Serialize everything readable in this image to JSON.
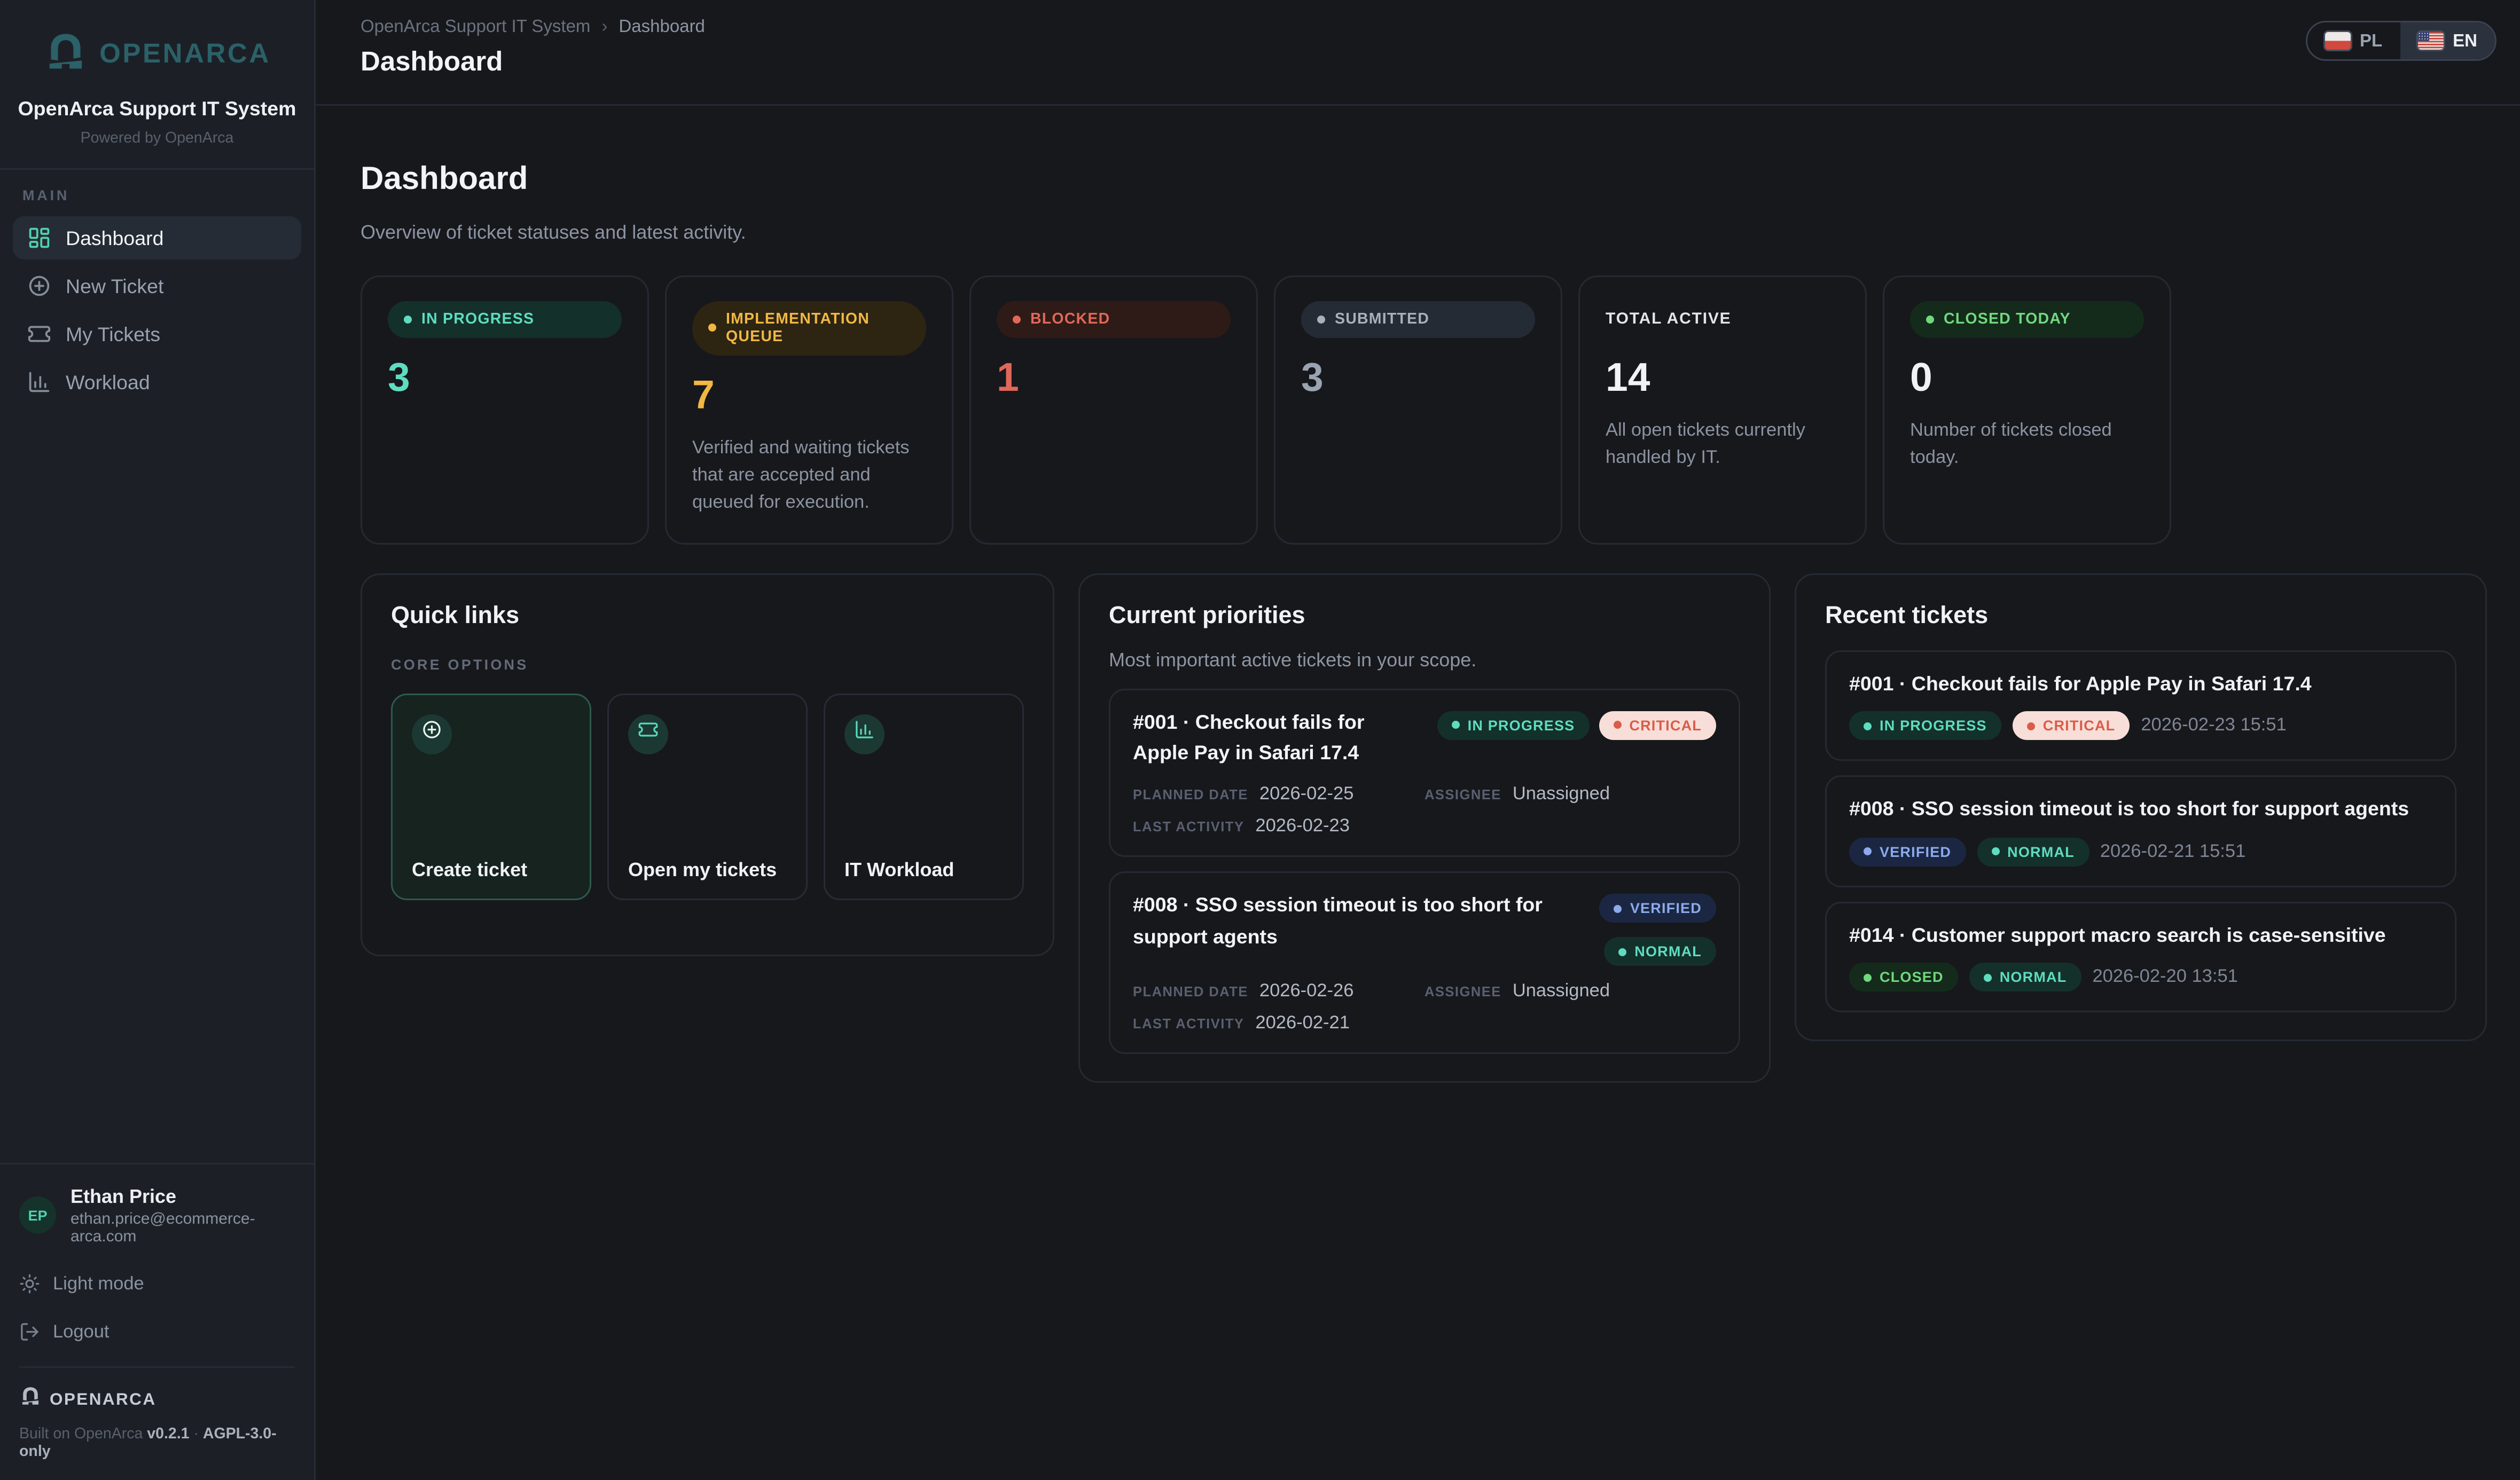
{
  "sidebar": {
    "brand": {
      "name": "OPENARCA",
      "title": "OpenArca Support IT System",
      "powered": "Powered by OpenArca"
    },
    "section_label": "MAIN",
    "items": [
      {
        "label": "Dashboard",
        "icon": "dashboard",
        "active": true
      },
      {
        "label": "New Ticket",
        "icon": "plus-circle",
        "active": false
      },
      {
        "label": "My Tickets",
        "icon": "ticket",
        "active": false
      },
      {
        "label": "Workload",
        "icon": "bar-chart",
        "active": false
      }
    ],
    "user": {
      "initials": "EP",
      "name": "Ethan Price",
      "email": "ethan.price@ecommerce-arca.com"
    },
    "actions": [
      {
        "label": "Light mode",
        "icon": "sun"
      },
      {
        "label": "Logout",
        "icon": "logout"
      }
    ],
    "footer": {
      "brand": "OPENARCA",
      "built": "Built on OpenArca",
      "version": "v0.2.1",
      "sep": "·",
      "license": "AGPL-3.0-only"
    }
  },
  "header": {
    "breadcrumb": {
      "root": "OpenArca Support IT System",
      "separator": "›",
      "current": "Dashboard"
    },
    "title": "Dashboard",
    "lang": [
      {
        "code": "PL",
        "flag": "poland",
        "active": false
      },
      {
        "code": "EN",
        "flag": "usa",
        "active": true
      }
    ]
  },
  "page": {
    "title": "Dashboard",
    "subtitle": "Overview of ticket statuses and latest activity."
  },
  "stats": [
    {
      "label": "IN PROGRESS",
      "badge_style": "teal",
      "value": "3",
      "value_style": "teal",
      "desc": ""
    },
    {
      "label": "IMPLEMENTATION QUEUE",
      "badge_style": "amber",
      "value": "7",
      "value_style": "amber",
      "desc": "Verified and waiting tickets that are accepted and queued for execution."
    },
    {
      "label": "BLOCKED",
      "badge_style": "red",
      "value": "1",
      "value_style": "red",
      "desc": ""
    },
    {
      "label": "SUBMITTED",
      "badge_style": "gray",
      "value": "3",
      "value_style": "gray",
      "desc": ""
    },
    {
      "label": "TOTAL ACTIVE",
      "badge_style": "none",
      "value": "14",
      "value_style": "white",
      "desc": "All open tickets currently handled by IT."
    },
    {
      "label": "CLOSED TODAY",
      "badge_style": "green",
      "value": "0",
      "value_style": "white",
      "desc": "Number of tickets closed today."
    }
  ],
  "quick_links": {
    "title": "Quick links",
    "section_label": "CORE OPTIONS",
    "tiles": [
      {
        "label": "Create ticket",
        "icon": "plus-circle",
        "highlight": true
      },
      {
        "label": "Open my tickets",
        "icon": "ticket",
        "highlight": false
      },
      {
        "label": "IT Workload",
        "icon": "bar-chart",
        "highlight": false
      }
    ]
  },
  "priorities": {
    "title": "Current priorities",
    "subtitle": "Most important active tickets in your scope.",
    "tickets": [
      {
        "title": "#001 · Checkout fails for Apple Pay in Safari 17.4",
        "badges": [
          {
            "label": "IN PROGRESS",
            "style": "teal"
          },
          {
            "label": "CRITICAL",
            "style": "critical"
          }
        ],
        "badges_layout": "row",
        "fields": [
          {
            "label": "PLANNED DATE",
            "value": "2026-02-25"
          },
          {
            "label": "ASSIGNEE",
            "value": "Unassigned"
          },
          {
            "label": "LAST ACTIVITY",
            "value": "2026-02-23"
          }
        ]
      },
      {
        "title": "#008 · SSO session timeout is too short for support agents",
        "badges": [
          {
            "label": "VERIFIED",
            "style": "blue"
          },
          {
            "label": "NORMAL",
            "style": "teal"
          }
        ],
        "badges_layout": "column",
        "fields": [
          {
            "label": "PLANNED DATE",
            "value": "2026-02-26"
          },
          {
            "label": "ASSIGNEE",
            "value": "Unassigned"
          },
          {
            "label": "LAST ACTIVITY",
            "value": "2026-02-21"
          }
        ]
      }
    ]
  },
  "recent": {
    "title": "Recent tickets",
    "items": [
      {
        "title": "#001 · Checkout fails for Apple Pay in Safari 17.4",
        "badges": [
          {
            "label": "IN PROGRESS",
            "style": "teal"
          },
          {
            "label": "CRITICAL",
            "style": "critical"
          }
        ],
        "time": "2026-02-23 15:51"
      },
      {
        "title": "#008 · SSO session timeout is too short for support agents",
        "badges": [
          {
            "label": "VERIFIED",
            "style": "blue"
          },
          {
            "label": "NORMAL",
            "style": "teal"
          }
        ],
        "time": "2026-02-21 15:51"
      },
      {
        "title": "#014 · Customer support macro search is case-sensitive",
        "badges": [
          {
            "label": "CLOSED",
            "style": "green"
          },
          {
            "label": "NORMAL",
            "style": "teal"
          }
        ],
        "time": "2026-02-20 13:51"
      }
    ]
  }
}
